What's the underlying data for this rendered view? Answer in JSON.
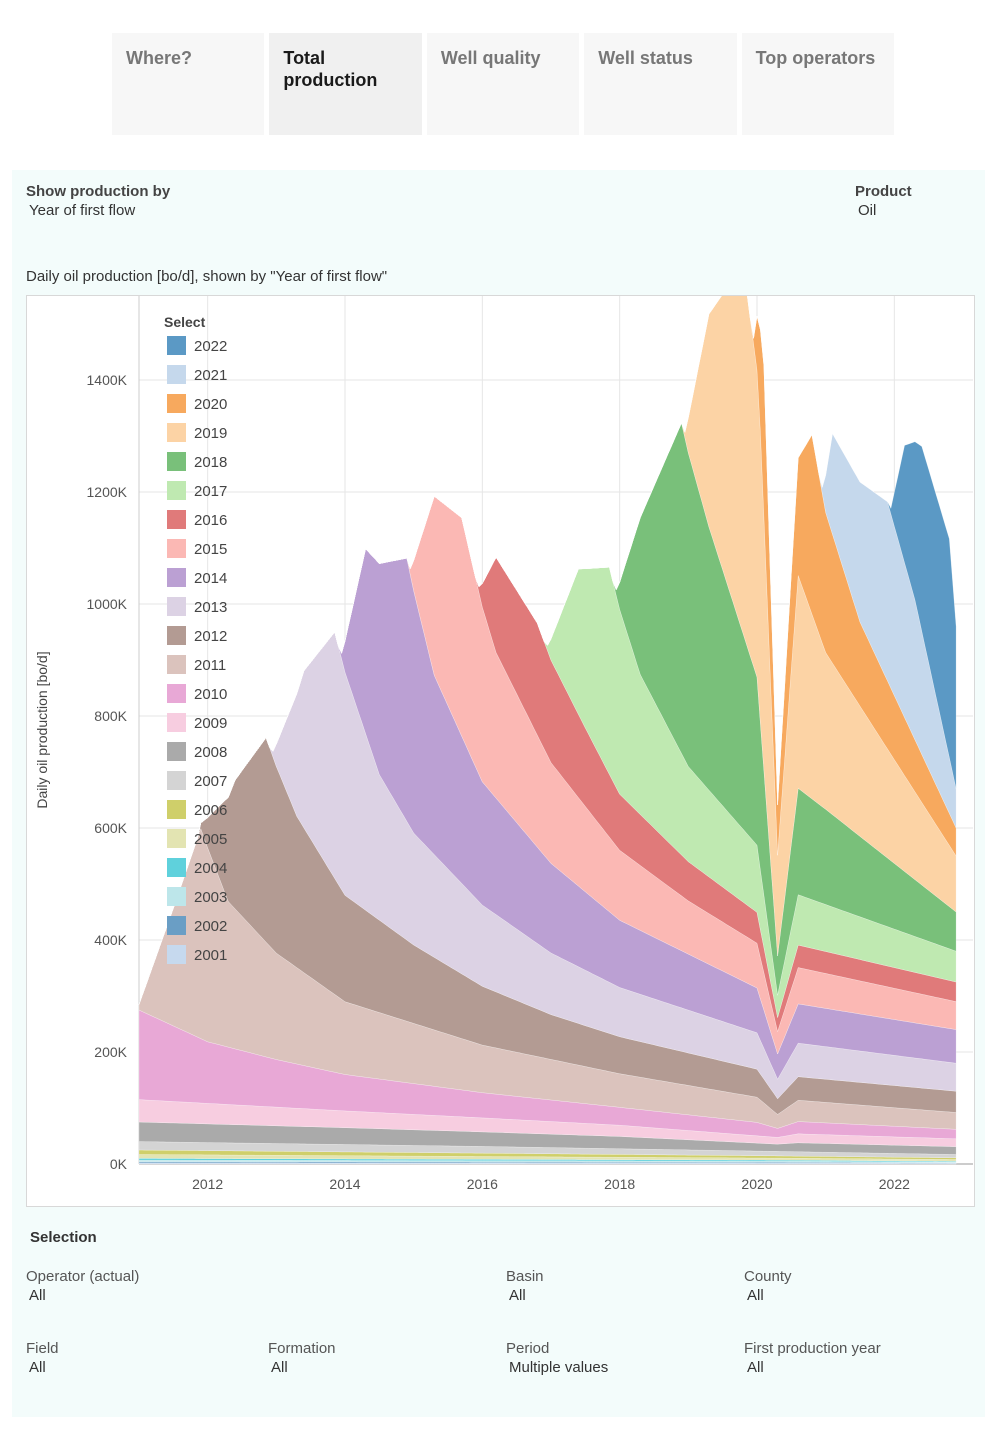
{
  "tabs": [
    "Where?",
    "Total production",
    "Well quality",
    "Well status",
    "Top operators"
  ],
  "active_tab": 1,
  "controls": {
    "show_by_label": "Show production by",
    "show_by_value": "Year of first flow",
    "product_label": "Product",
    "product_value": "Oil"
  },
  "chart_title": "Daily oil production [bo/d], shown by \"Year of first flow\"",
  "selection": {
    "title": "Selection",
    "filters": [
      {
        "label": "Operator (actual)",
        "value": "All"
      },
      {
        "label": "Basin",
        "value": "All"
      },
      {
        "label": "County",
        "value": "All"
      },
      {
        "label": "Field",
        "value": "All"
      },
      {
        "label": "Formation",
        "value": "All"
      },
      {
        "label": "Period",
        "value": "Multiple values"
      },
      {
        "label": "First production year",
        "value": "All"
      }
    ]
  },
  "chart_data": {
    "type": "area",
    "stacked": true,
    "ylabel": "Daily oil production [bo/d]",
    "xlabel": "",
    "ylim": [
      0,
      1550000
    ],
    "xlim": [
      2011.0,
      2023.0
    ],
    "x_ticks": [
      2012,
      2014,
      2016,
      2018,
      2020,
      2022
    ],
    "y_ticks": [
      0,
      200000,
      400000,
      600000,
      800000,
      1000000,
      1200000,
      1400000
    ],
    "y_tick_labels": [
      "0K",
      "200K",
      "400K",
      "600K",
      "800K",
      "1000K",
      "1200K",
      "1400K"
    ],
    "legend_title": "Select",
    "legend_position": "top-left",
    "grid": true,
    "legend_order": [
      "2022",
      "2021",
      "2020",
      "2019",
      "2018",
      "2017",
      "2016",
      "2015",
      "2014",
      "2013",
      "2012",
      "2011",
      "2010",
      "2009",
      "2008",
      "2007",
      "2006",
      "2005",
      "2004",
      "2003",
      "2002",
      "2001"
    ],
    "series": [
      {
        "name": "2001",
        "color": "#c6d9ee",
        "start": 2011.0,
        "values": [
          [
            2011.0,
            2000
          ],
          [
            2020.3,
            1500
          ],
          [
            2022.9,
            1000
          ]
        ]
      },
      {
        "name": "2002",
        "color": "#6a9ec5",
        "start": 2011.0,
        "values": [
          [
            2011.0,
            2000
          ],
          [
            2020.3,
            1500
          ],
          [
            2022.9,
            1000
          ]
        ]
      },
      {
        "name": "2003",
        "color": "#bde6ea",
        "start": 2011.0,
        "values": [
          [
            2011.0,
            3000
          ],
          [
            2020.3,
            2000
          ],
          [
            2022.9,
            1500
          ]
        ]
      },
      {
        "name": "2004",
        "color": "#5fd1dc",
        "start": 2011.0,
        "values": [
          [
            2011.0,
            3000
          ],
          [
            2020.3,
            2000
          ],
          [
            2022.9,
            1500
          ]
        ]
      },
      {
        "name": "2005",
        "color": "#e3e4b2",
        "start": 2011.0,
        "values": [
          [
            2011.0,
            7000
          ],
          [
            2016.0,
            5000
          ],
          [
            2020.3,
            3500
          ],
          [
            2022.9,
            3000
          ]
        ]
      },
      {
        "name": "2006",
        "color": "#cfcf6a",
        "start": 2011.0,
        "values": [
          [
            2011.0,
            8000
          ],
          [
            2016.0,
            6000
          ],
          [
            2020.3,
            4000
          ],
          [
            2022.9,
            3000
          ]
        ]
      },
      {
        "name": "2007",
        "color": "#d4d4d4",
        "start": 2011.0,
        "values": [
          [
            2011.0,
            15000
          ],
          [
            2016.0,
            12000
          ],
          [
            2020.3,
            8000
          ],
          [
            2022.9,
            6000
          ]
        ]
      },
      {
        "name": "2008",
        "color": "#aaaaaa",
        "start": 2011.0,
        "values": [
          [
            2011.0,
            35000
          ],
          [
            2014.0,
            30000
          ],
          [
            2018.0,
            22000
          ],
          [
            2020.3,
            13000
          ],
          [
            2020.6,
            16000
          ],
          [
            2022.9,
            14000
          ]
        ]
      },
      {
        "name": "2009",
        "color": "#f7cde0",
        "start": 2011.0,
        "values": [
          [
            2011.0,
            40000
          ],
          [
            2014.0,
            30000
          ],
          [
            2018.0,
            20000
          ],
          [
            2020.3,
            12000
          ],
          [
            2020.6,
            16000
          ],
          [
            2022.9,
            14000
          ]
        ]
      },
      {
        "name": "2010",
        "color": "#e8a8d6",
        "start": 2011.0,
        "values": [
          [
            2011.0,
            160000
          ],
          [
            2012.0,
            110000
          ],
          [
            2013.0,
            85000
          ],
          [
            2014.0,
            65000
          ],
          [
            2016.0,
            45000
          ],
          [
            2018.0,
            32000
          ],
          [
            2020.0,
            24000
          ],
          [
            2020.3,
            16000
          ],
          [
            2020.6,
            22000
          ],
          [
            2022.9,
            17000
          ]
        ]
      },
      {
        "name": "2011",
        "color": "#dbc3bd",
        "start": 2011.0,
        "values": [
          [
            2011.0,
            10000
          ],
          [
            2011.5,
            210000
          ],
          [
            2011.9,
            375000
          ],
          [
            2012.3,
            260000
          ],
          [
            2013.0,
            190000
          ],
          [
            2014.0,
            130000
          ],
          [
            2016.0,
            85000
          ],
          [
            2018.0,
            60000
          ],
          [
            2020.0,
            45000
          ],
          [
            2020.3,
            25000
          ],
          [
            2020.6,
            38000
          ],
          [
            2022.9,
            30000
          ]
        ]
      },
      {
        "name": "2012",
        "color": "#b39b93",
        "start": 2011.9,
        "values": [
          [
            2011.9,
            10000
          ],
          [
            2012.4,
            230000
          ],
          [
            2012.85,
            365000
          ],
          [
            2013.3,
            270000
          ],
          [
            2014.0,
            190000
          ],
          [
            2015.0,
            140000
          ],
          [
            2016.0,
            105000
          ],
          [
            2017.0,
            80000
          ],
          [
            2018.0,
            66000
          ],
          [
            2020.0,
            50000
          ],
          [
            2020.3,
            28000
          ],
          [
            2020.6,
            42000
          ],
          [
            2022.9,
            38000
          ]
        ]
      },
      {
        "name": "2013",
        "color": "#dcd2e4",
        "start": 2012.95,
        "values": [
          [
            2012.95,
            10000
          ],
          [
            2013.4,
            280000
          ],
          [
            2013.85,
            440000
          ],
          [
            2014.5,
            260000
          ],
          [
            2015.0,
            200000
          ],
          [
            2016.0,
            145000
          ],
          [
            2017.0,
            110000
          ],
          [
            2018.0,
            88000
          ],
          [
            2020.0,
            65000
          ],
          [
            2020.3,
            35000
          ],
          [
            2020.6,
            60000
          ],
          [
            2022.9,
            50000
          ]
        ]
      },
      {
        "name": "2014",
        "color": "#bba0d3",
        "start": 2013.95,
        "values": [
          [
            2013.95,
            10000
          ],
          [
            2014.3,
            330000
          ],
          [
            2014.9,
            470000
          ],
          [
            2015.3,
            320000
          ],
          [
            2016.0,
            220000
          ],
          [
            2017.0,
            160000
          ],
          [
            2018.0,
            120000
          ],
          [
            2019.0,
            100000
          ],
          [
            2020.0,
            80000
          ],
          [
            2020.3,
            45000
          ],
          [
            2020.6,
            70000
          ],
          [
            2022.9,
            60000
          ]
        ]
      },
      {
        "name": "2015",
        "color": "#fbb8b4",
        "start": 2014.95,
        "values": [
          [
            2014.95,
            10000
          ],
          [
            2015.3,
            320000
          ],
          [
            2015.7,
            390000
          ],
          [
            2016.2,
            260000
          ],
          [
            2017.0,
            180000
          ],
          [
            2018.0,
            125000
          ],
          [
            2019.0,
            95000
          ],
          [
            2020.0,
            80000
          ],
          [
            2020.3,
            40000
          ],
          [
            2020.6,
            65000
          ],
          [
            2022.9,
            50000
          ]
        ]
      },
      {
        "name": "2016",
        "color": "#e07a7a",
        "start": 2015.95,
        "values": [
          [
            2015.95,
            10000
          ],
          [
            2016.2,
            170000
          ],
          [
            2016.8,
            200000
          ],
          [
            2017.5,
            140000
          ],
          [
            2018.0,
            100000
          ],
          [
            2019.0,
            70000
          ],
          [
            2020.0,
            55000
          ],
          [
            2020.3,
            25000
          ],
          [
            2020.6,
            40000
          ],
          [
            2022.9,
            35000
          ]
        ]
      },
      {
        "name": "2017",
        "color": "#bfe9b1",
        "start": 2016.95,
        "values": [
          [
            2016.95,
            10000
          ],
          [
            2017.4,
            260000
          ],
          [
            2017.85,
            370000
          ],
          [
            2018.3,
            250000
          ],
          [
            2019.0,
            170000
          ],
          [
            2020.0,
            120000
          ],
          [
            2020.3,
            40000
          ],
          [
            2020.6,
            90000
          ],
          [
            2022.9,
            55000
          ]
        ]
      },
      {
        "name": "2018",
        "color": "#79c07a",
        "start": 2017.95,
        "values": [
          [
            2017.95,
            10000
          ],
          [
            2018.3,
            280000
          ],
          [
            2018.9,
            590000
          ],
          [
            2019.3,
            470000
          ],
          [
            2020.0,
            300000
          ],
          [
            2020.3,
            70000
          ],
          [
            2020.6,
            190000
          ],
          [
            2021.0,
            170000
          ],
          [
            2022.9,
            70000
          ]
        ]
      },
      {
        "name": "2019",
        "color": "#fcd3a5",
        "start": 2018.95,
        "values": [
          [
            2018.95,
            10000
          ],
          [
            2019.3,
            380000
          ],
          [
            2019.8,
            660000
          ],
          [
            2020.05,
            520000
          ],
          [
            2020.3,
            180000
          ],
          [
            2020.6,
            380000
          ],
          [
            2021.0,
            280000
          ],
          [
            2022.9,
            100000
          ]
        ]
      },
      {
        "name": "2020",
        "color": "#f7a95e",
        "start": 2019.95,
        "values": [
          [
            2019.95,
            10000
          ],
          [
            2020.1,
            270000
          ],
          [
            2020.3,
            90000
          ],
          [
            2020.6,
            210000
          ],
          [
            2020.8,
            320000
          ],
          [
            2021.0,
            250000
          ],
          [
            2021.5,
            150000
          ],
          [
            2022.9,
            50000
          ]
        ]
      },
      {
        "name": "2021",
        "color": "#c5d8ec",
        "start": 2020.95,
        "values": [
          [
            2020.95,
            10000
          ],
          [
            2021.1,
            180000
          ],
          [
            2021.5,
            250000
          ],
          [
            2021.9,
            320000
          ],
          [
            2022.3,
            250000
          ],
          [
            2022.9,
            70000
          ]
        ]
      },
      {
        "name": "2022",
        "color": "#5b99c5",
        "start": 2021.95,
        "values": [
          [
            2021.95,
            10000
          ],
          [
            2022.15,
            210000
          ],
          [
            2022.4,
            330000
          ],
          [
            2022.8,
            390000
          ],
          [
            2022.9,
            290000
          ]
        ]
      }
    ]
  }
}
